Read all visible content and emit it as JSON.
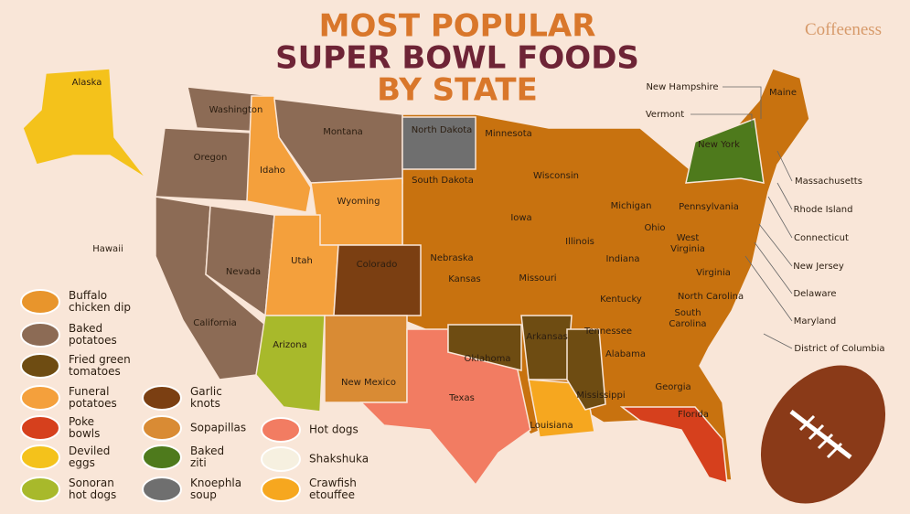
{
  "title": {
    "lines": [
      "MOST POPULAR",
      "SUPER BOWL FOODS",
      "BY STATE"
    ]
  },
  "brand": "Coffeeness",
  "states": [
    {
      "label": "Alaska",
      "color": "#f4c21b"
    },
    {
      "label": "Hawaii"
    },
    {
      "label": "Washington",
      "color": "#8c6b55"
    },
    {
      "label": "Oregon",
      "color": "#8c6b55"
    },
    {
      "label": "California",
      "color": "#8c6b55"
    },
    {
      "label": "Nevada",
      "color": "#8c6b55"
    },
    {
      "label": "Idaho",
      "color": "#f4a03c"
    },
    {
      "label": "Montana",
      "color": "#8c6b55"
    },
    {
      "label": "Wyoming",
      "color": "#f4a03c"
    },
    {
      "label": "Utah",
      "color": "#f4a03c"
    },
    {
      "label": "Colorado",
      "color": "#7b3f12"
    },
    {
      "label": "Arizona",
      "color": "#a8b92b"
    },
    {
      "label": "New Mexico",
      "color": "#d98b34"
    },
    {
      "label": "North Dakota",
      "color": "#6f6f6f"
    },
    {
      "label": "South Dakota"
    },
    {
      "label": "Minnesota"
    },
    {
      "label": "Nebraska"
    },
    {
      "label": "Kansas"
    },
    {
      "label": "Texas",
      "color": "#f27c62"
    },
    {
      "label": "Oklahoma",
      "color": "#6e4c12"
    },
    {
      "label": "Iowa"
    },
    {
      "label": "Missouri"
    },
    {
      "label": "Arkansas",
      "color": "#6e4c12"
    },
    {
      "label": "Louisiana",
      "color": "#f6a71f"
    },
    {
      "label": "Mississippi",
      "color": "#6e4c12"
    },
    {
      "label": "Wisconsin"
    },
    {
      "label": "Illinois"
    },
    {
      "label": "Michigan"
    },
    {
      "label": "Indiana"
    },
    {
      "label": "Ohio"
    },
    {
      "label": "Kentucky"
    },
    {
      "label": "Tennessee"
    },
    {
      "label": "Alabama"
    },
    {
      "label": "Georgia"
    },
    {
      "label": "Florida",
      "color": "#d6401d"
    },
    {
      "label": [
        "South",
        "Carolina"
      ]
    },
    {
      "label": "North Carolina"
    },
    {
      "label": "Virginia"
    },
    {
      "label": [
        "West",
        "Virginia"
      ]
    },
    {
      "label": "Pennsylvania"
    },
    {
      "label": "New York",
      "color": "#4e7a1c"
    },
    {
      "label": "Maine"
    },
    {
      "label": "New Hampshire"
    },
    {
      "label": "Vermont"
    },
    {
      "label": "Massachusetts"
    },
    {
      "label": "Rhode Island"
    },
    {
      "label": "Connecticut"
    },
    {
      "label": "New Jersey"
    },
    {
      "label": "Delaware"
    },
    {
      "label": "Maryland"
    },
    {
      "label": "District of Columbia"
    }
  ],
  "legend": [
    {
      "label": [
        "Buffalo",
        "chicken dip"
      ],
      "color": "#e8952c"
    },
    {
      "label": [
        "Baked",
        "potatoes"
      ],
      "color": "#8c6b55"
    },
    {
      "label": [
        "Fried green",
        "tomatoes"
      ],
      "color": "#6e4c12"
    },
    {
      "label": [
        "Funeral",
        "potatoes"
      ],
      "color": "#f4a03c"
    },
    {
      "label": [
        "Poke",
        "bowls"
      ],
      "color": "#d6401d"
    },
    {
      "label": [
        "Deviled",
        "eggs"
      ],
      "color": "#f4c21b"
    },
    {
      "label": [
        "Sonoran",
        "hot dogs"
      ],
      "color": "#a8b92b"
    },
    {
      "label": [
        "Garlic",
        "knots"
      ],
      "color": "#7b3f12"
    },
    {
      "label": [
        "Sopapillas"
      ],
      "color": "#d98b34"
    },
    {
      "label": [
        "Baked",
        "ziti"
      ],
      "color": "#4e7a1c"
    },
    {
      "label": [
        "Knoephla",
        "soup"
      ],
      "color": "#6f6f6f"
    },
    {
      "label": [
        "Hot dogs"
      ],
      "color": "#f27c62"
    },
    {
      "label": [
        "Shakshuka"
      ],
      "color": "#f6f0e0"
    },
    {
      "label": [
        "Crawfish",
        "etouffee"
      ],
      "color": "#f6a71f"
    }
  ]
}
